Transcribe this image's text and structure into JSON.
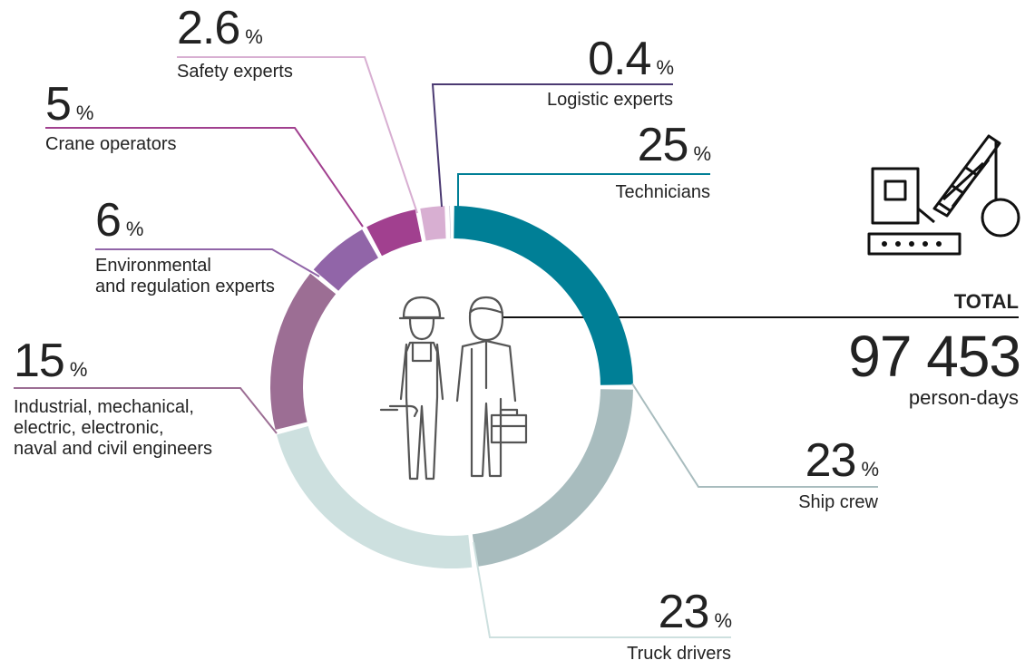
{
  "chart_data": {
    "type": "donut",
    "categories": [
      "Technicians",
      "Ship crew",
      "Truck drivers",
      "Industrial, mechanical,\nelectric, electronic,\nnaval and civil engineers",
      "Environmental\nand regulation experts",
      "Crane operators",
      "Safety experts",
      "Logistic experts"
    ],
    "values": [
      25,
      23,
      23,
      15,
      6,
      5,
      2.6,
      0.4
    ],
    "unit": "%",
    "colors": [
      "#007f96",
      "#a8bcbe",
      "#cde0df",
      "#9c6e94",
      "#9165a8",
      "#a1408f",
      "#d8afd2",
      "#4b3a72"
    ],
    "total": {
      "title": "TOTAL",
      "value": "97 453",
      "unit": "person-days"
    }
  }
}
